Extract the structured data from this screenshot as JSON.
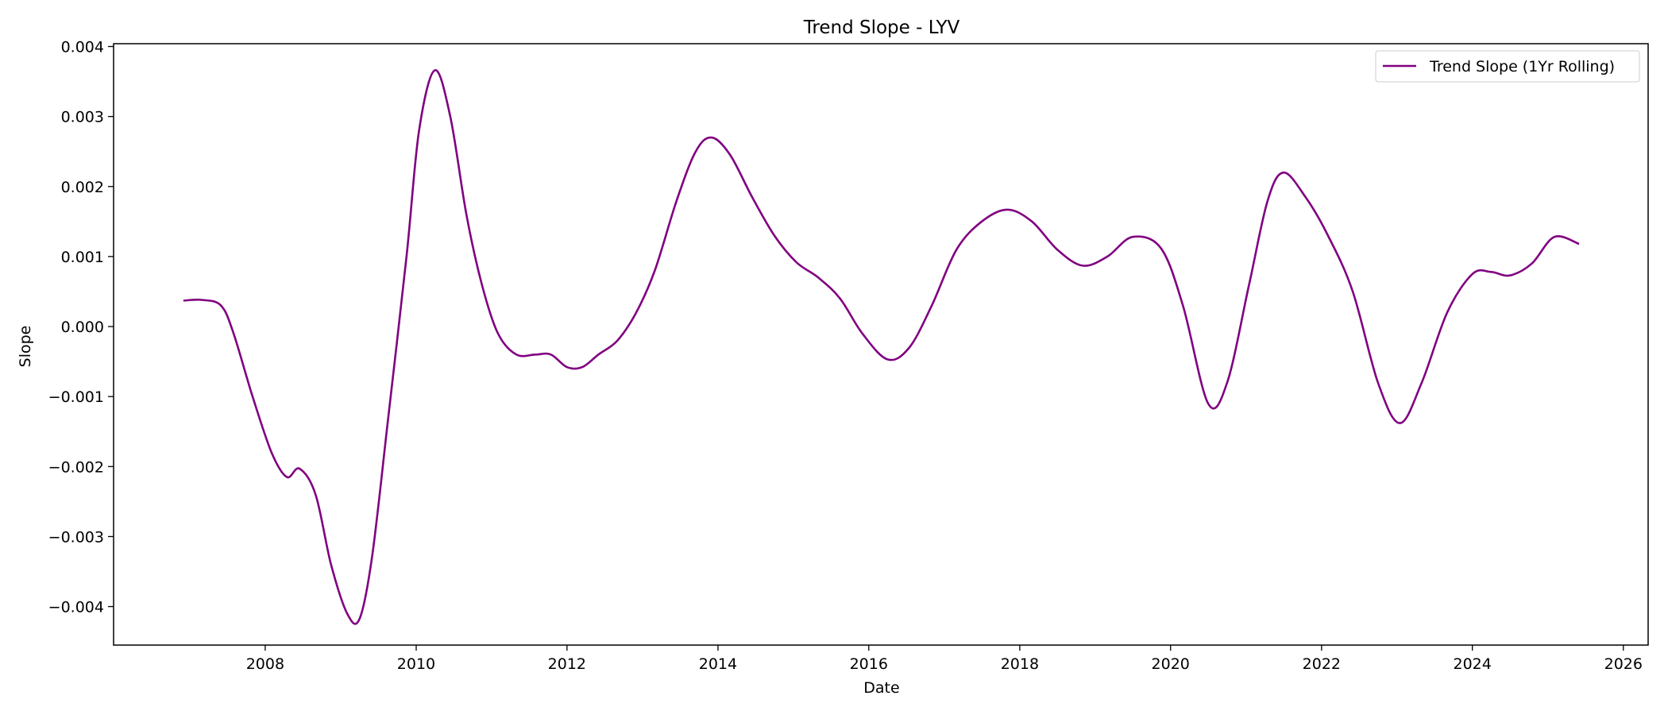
{
  "chart_data": {
    "type": "line",
    "title": "Trend Slope - LYV",
    "xlabel": "Date",
    "ylabel": "Slope",
    "xlim": [
      "2005-12-28",
      "2026-05-01"
    ],
    "ylim": [
      -0.00455,
      0.00404
    ],
    "x_ticks": [
      "2008",
      "2010",
      "2012",
      "2014",
      "2016",
      "2018",
      "2020",
      "2022",
      "2024",
      "2026"
    ],
    "y_ticks": [
      "0.004",
      "0.003",
      "0.002",
      "0.001",
      "0.000",
      "−0.001",
      "−0.002",
      "−0.003",
      "−0.004"
    ],
    "y_tick_values": [
      0.004,
      0.003,
      0.002,
      0.001,
      0.0,
      -0.001,
      -0.002,
      -0.003,
      -0.004
    ],
    "grid": false,
    "legend_position": "top-right",
    "series": [
      {
        "name": "Trend Slope (1Yr Rolling)",
        "color": "#800080",
        "points": [
          [
            "2006-12-01",
            0.00037
          ],
          [
            "2007-03-01",
            0.00038
          ],
          [
            "2007-06-01",
            0.0003
          ],
          [
            "2007-08-01",
            -0.0001
          ],
          [
            "2007-11-01",
            -0.001
          ],
          [
            "2008-02-01",
            -0.0018
          ],
          [
            "2008-04-15",
            -0.00215
          ],
          [
            "2008-06-15",
            -0.00203
          ],
          [
            "2008-09-01",
            -0.0024
          ],
          [
            "2008-11-15",
            -0.0034
          ],
          [
            "2009-02-01",
            -0.0041
          ],
          [
            "2009-04-01",
            -0.00418
          ],
          [
            "2009-06-01",
            -0.0033
          ],
          [
            "2009-08-15",
            -0.0014
          ],
          [
            "2009-11-15",
            0.001
          ],
          [
            "2010-01-15",
            0.0028
          ],
          [
            "2010-04-01",
            0.00366
          ],
          [
            "2010-06-15",
            0.003
          ],
          [
            "2010-09-01",
            0.0016
          ],
          [
            "2010-11-15",
            0.0006
          ],
          [
            "2011-02-01",
            -0.0001
          ],
          [
            "2011-05-01",
            -0.0004
          ],
          [
            "2011-08-01",
            -0.0004
          ],
          [
            "2011-10-15",
            -0.0004
          ],
          [
            "2012-01-01",
            -0.00058
          ],
          [
            "2012-03-15",
            -0.00058
          ],
          [
            "2012-06-01",
            -0.0004
          ],
          [
            "2012-09-01",
            -0.0002
          ],
          [
            "2012-12-01",
            0.0002
          ],
          [
            "2013-03-01",
            0.0008
          ],
          [
            "2013-06-15",
            0.0018
          ],
          [
            "2013-09-15",
            0.0025
          ],
          [
            "2013-12-01",
            0.0027
          ],
          [
            "2014-03-01",
            0.00245
          ],
          [
            "2014-06-15",
            0.00185
          ],
          [
            "2014-10-01",
            0.0013
          ],
          [
            "2015-01-15",
            0.00092
          ],
          [
            "2015-05-01",
            0.0007
          ],
          [
            "2015-08-15",
            0.0004
          ],
          [
            "2015-12-01",
            -0.0001
          ],
          [
            "2016-04-01",
            -0.00047
          ],
          [
            "2016-07-15",
            -0.0003
          ],
          [
            "2016-11-01",
            0.0003
          ],
          [
            "2017-03-01",
            0.0011
          ],
          [
            "2017-07-01",
            0.0015
          ],
          [
            "2017-11-01",
            0.00167
          ],
          [
            "2018-03-01",
            0.0015
          ],
          [
            "2018-07-01",
            0.0011
          ],
          [
            "2018-11-01",
            0.00087
          ],
          [
            "2019-03-01",
            0.001
          ],
          [
            "2019-07-01",
            0.00128
          ],
          [
            "2019-11-15",
            0.00112
          ],
          [
            "2020-03-01",
            0.0003
          ],
          [
            "2020-07-01",
            -0.0011
          ],
          [
            "2020-10-01",
            -0.0008
          ],
          [
            "2021-01-15",
            0.0006
          ],
          [
            "2021-04-15",
            0.0018
          ],
          [
            "2021-07-01",
            0.0022
          ],
          [
            "2021-10-15",
            0.00185
          ],
          [
            "2022-02-01",
            0.0013
          ],
          [
            "2022-06-01",
            0.0005
          ],
          [
            "2022-10-01",
            -0.0008
          ],
          [
            "2023-01-15",
            -0.00138
          ],
          [
            "2023-05-01",
            -0.0008
          ],
          [
            "2023-09-01",
            0.0002
          ],
          [
            "2024-01-01",
            0.00075
          ],
          [
            "2024-04-01",
            0.00078
          ],
          [
            "2024-07-01",
            0.00073
          ],
          [
            "2024-10-15",
            0.0009
          ],
          [
            "2025-02-01",
            0.00128
          ],
          [
            "2025-06-01",
            0.00118
          ]
        ]
      }
    ]
  }
}
